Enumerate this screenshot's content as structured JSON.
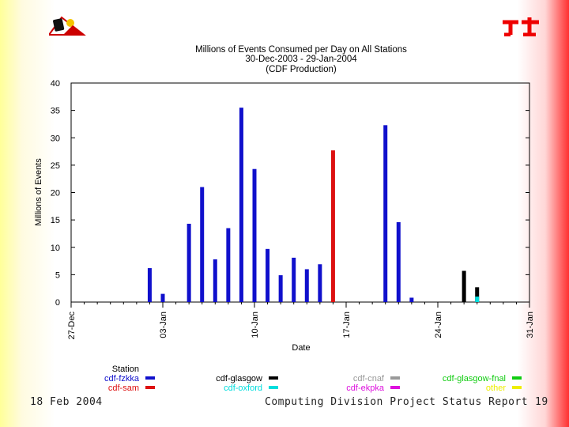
{
  "logos": {
    "left": "computing-division-logo",
    "right": "fermilab-logo"
  },
  "footer": {
    "date": "18 Feb 2004",
    "title": "Computing Division Project Status Report",
    "page": "19"
  },
  "chart_data": {
    "type": "bar",
    "title": "Millions of Events Consumed per Day on All Stations",
    "subtitle": "30-Dec-2003 - 29-Jan-2004",
    "subtitle2": "(CDF Production)",
    "xlabel": "Date",
    "ylabel": "Millions of Events",
    "ylim": [
      0,
      40
    ],
    "yticks": [
      0,
      5,
      10,
      15,
      20,
      25,
      30,
      35,
      40
    ],
    "xlim_days": [
      0,
      35
    ],
    "xticks": [
      {
        "day": 0,
        "label": "27-Dec"
      },
      {
        "day": 7,
        "label": "03-Jan"
      },
      {
        "day": 14,
        "label": "10-Jan"
      },
      {
        "day": 21,
        "label": "17-Jan"
      },
      {
        "day": 28,
        "label": "24-Jan"
      },
      {
        "day": 35,
        "label": "31-Jan"
      }
    ],
    "legend_title": "Station",
    "series": [
      {
        "name": "cdf-fzkka",
        "color": "#1010cc",
        "points": [
          [
            6,
            6.2
          ],
          [
            7,
            1.5
          ],
          [
            9,
            14.3
          ],
          [
            10,
            21
          ],
          [
            11,
            7.8
          ],
          [
            12,
            13.5
          ],
          [
            13,
            35.5
          ],
          [
            14,
            24.3
          ],
          [
            15,
            9.7
          ],
          [
            16,
            4.9
          ],
          [
            17,
            8.1
          ],
          [
            18,
            6
          ],
          [
            19,
            6.9
          ],
          [
            24,
            32.3
          ],
          [
            25,
            14.6
          ],
          [
            26,
            0.8
          ]
        ]
      },
      {
        "name": "cdf-sam",
        "color": "#dd1111",
        "points": [
          [
            20,
            27.7
          ]
        ]
      },
      {
        "name": "cdf-glasgow",
        "color": "#000000",
        "points": [
          [
            30,
            5.7
          ],
          [
            31,
            2.7
          ]
        ]
      },
      {
        "name": "cdf-oxford",
        "color": "#00dddd",
        "points": [
          [
            31,
            1
          ]
        ]
      },
      {
        "name": "cdf-cnaf",
        "color": "#999999",
        "points": []
      },
      {
        "name": "cdf-ekpka",
        "color": "#dd11dd",
        "points": []
      },
      {
        "name": "cdf-glasgow-fnal",
        "color": "#11cc11",
        "points": []
      },
      {
        "name": "other",
        "color": "#eeee00",
        "points": []
      }
    ]
  }
}
